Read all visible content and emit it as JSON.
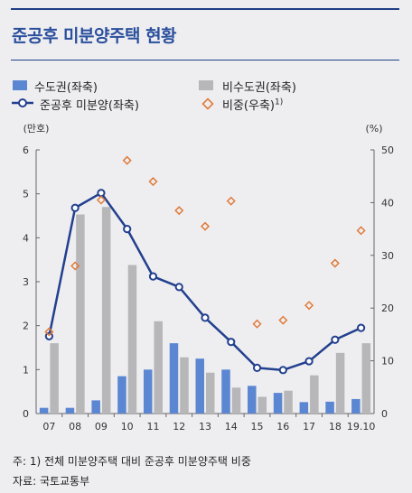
{
  "title": "준공후 미분양주택 현황",
  "legend": {
    "metro": "수도권(좌축)",
    "nonmetro": "비수도권(좌축)",
    "completed": "준공후 미분양(좌축)",
    "ratio": "비중(우축)",
    "ratio_sup": "1)"
  },
  "colors": {
    "metro": "#5b86d1",
    "nonmetro": "#b7b7b9",
    "line": "#23408e",
    "ratio": "#e07b39",
    "panel": "#eeeef1",
    "title": "#2a4f9c"
  },
  "chart_data": {
    "type": "bar",
    "categories": [
      "07",
      "08",
      "09",
      "10",
      "11",
      "12",
      "13",
      "14",
      "15",
      "16",
      "17",
      "18",
      "19.10"
    ],
    "left_unit": "(만호)",
    "right_unit": "(%)",
    "ylim_left": [
      0,
      6
    ],
    "ylim_right": [
      0,
      50
    ],
    "left_ticks": [
      0,
      1,
      2,
      3,
      4,
      5,
      6
    ],
    "right_ticks": [
      0,
      10,
      20,
      30,
      40,
      50
    ],
    "series": [
      {
        "name": "수도권(좌축)",
        "type": "bar",
        "axis": "left",
        "values": [
          0.13,
          0.13,
          0.3,
          0.85,
          1.0,
          1.6,
          1.25,
          1.0,
          0.63,
          0.47,
          0.26,
          0.27,
          0.33
        ]
      },
      {
        "name": "비수도권(좌축)",
        "type": "bar",
        "axis": "left",
        "values": [
          1.6,
          4.53,
          4.7,
          3.38,
          2.1,
          1.28,
          0.93,
          0.59,
          0.38,
          0.52,
          0.87,
          1.38,
          1.6
        ]
      },
      {
        "name": "준공후 미분양(좌축)",
        "type": "line",
        "axis": "left",
        "values": [
          1.76,
          4.68,
          5.02,
          4.2,
          3.12,
          2.88,
          2.18,
          1.63,
          1.04,
          0.99,
          1.19,
          1.68,
          1.95
        ]
      },
      {
        "name": "비중(우축)",
        "type": "scatter",
        "axis": "right",
        "values": [
          15.5,
          28.0,
          40.5,
          48.0,
          44.0,
          38.5,
          35.5,
          40.3,
          17.0,
          17.7,
          20.5,
          28.5,
          34.7
        ]
      }
    ]
  },
  "footnotes": {
    "note": "주: 1) 전체 미분양주택 대비 준공후 미분양주택 비중",
    "source": "자료: 국토교통부"
  }
}
